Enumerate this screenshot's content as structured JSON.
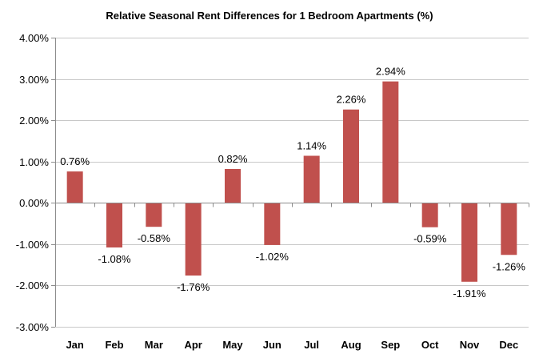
{
  "chart_data": {
    "type": "bar",
    "title": "Relative Seasonal Rent Differences for 1 Bedroom Apartments (%)",
    "xlabel": "",
    "ylabel": "",
    "categories": [
      "Jan",
      "Feb",
      "Mar",
      "Apr",
      "May",
      "Jun",
      "Jul",
      "Aug",
      "Sep",
      "Oct",
      "Nov",
      "Dec"
    ],
    "values": [
      0.76,
      -1.08,
      -0.58,
      -1.76,
      0.82,
      -1.02,
      1.14,
      2.26,
      2.94,
      -0.59,
      -1.91,
      -1.26
    ],
    "data_labels": [
      "0.76%",
      "-1.08%",
      "-0.58%",
      "-1.76%",
      "0.82%",
      "-1.02%",
      "1.14%",
      "2.26%",
      "2.94%",
      "-0.59%",
      "-1.91%",
      "-1.26%"
    ],
    "ylim": [
      -3,
      4
    ],
    "yticks": [
      4,
      3,
      2,
      1,
      0,
      -1,
      -2,
      -3
    ],
    "ytick_labels": [
      "4.00%",
      "3.00%",
      "2.00%",
      "1.00%",
      "0.00%",
      "-1.00%",
      "-2.00%",
      "-3.00%"
    ],
    "grid": true,
    "legend": "none",
    "bar_color": "#c0504d"
  }
}
